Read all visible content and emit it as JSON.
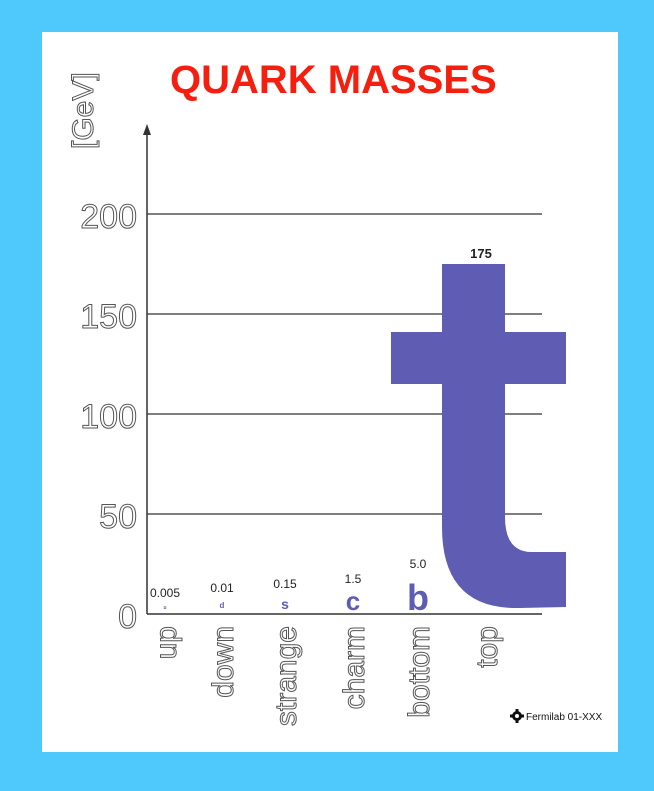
{
  "chart_data": {
    "type": "bar",
    "title": "QUARK MASSES",
    "ylabel": "[GeV]",
    "xlabel": "",
    "ylim": [
      0,
      200
    ],
    "yticks": [
      "0",
      "50",
      "100",
      "150",
      "200"
    ],
    "grid": true,
    "categories": [
      "up",
      "down",
      "strange",
      "charm",
      "bottom",
      "top"
    ],
    "value_labels": [
      "0.005",
      "0.01",
      "0.15",
      "1.5",
      "5.0",
      "175"
    ],
    "values": [
      0.005,
      0.01,
      0.15,
      1.5,
      5.0,
      175
    ],
    "letters": [
      "u",
      "d",
      "s",
      "c",
      "b",
      "t"
    ],
    "colors": {
      "title": "#f41f0f",
      "quark": "#5e5db3",
      "background": "#4fc8fb"
    }
  },
  "credit": "Fermilab 01-XXX",
  "credit_icon": "fermilab-logo-icon"
}
